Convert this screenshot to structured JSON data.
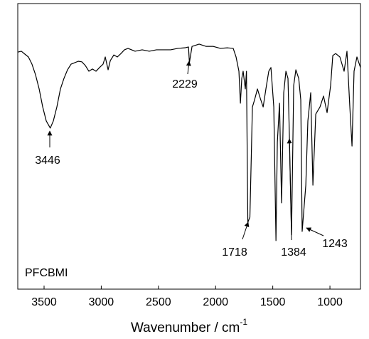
{
  "chart_data": {
    "type": "line",
    "xlabel": "Wavenumber / cm",
    "xlabel_superscript": "-1",
    "sample_label": "PFCBMI",
    "annotations": [
      "3446",
      "2229",
      "1718",
      "1384",
      "1243"
    ],
    "xlim": [
      3730,
      733
    ],
    "ylim": [
      0,
      100
    ],
    "xticks": [
      3500,
      3000,
      2500,
      2000,
      1500,
      1000
    ],
    "color": "#000000",
    "x": [
      3730,
      3699,
      3668,
      3637,
      3606,
      3575,
      3543,
      3512,
      3481,
      3446,
      3419,
      3388,
      3357,
      3326,
      3295,
      3264,
      3232,
      3201,
      3170,
      3139,
      3108,
      3077,
      3046,
      3015,
      2984,
      2965,
      2940,
      2921,
      2890,
      2859,
      2828,
      2797,
      2766,
      2704,
      2642,
      2580,
      2517,
      2455,
      2393,
      2331,
      2269,
      2237,
      2229,
      2206,
      2144,
      2082,
      2020,
      1958,
      1895,
      1846,
      1821,
      1796,
      1783,
      1771,
      1759,
      1740,
      1730,
      1718,
      1700,
      1678,
      1659,
      1634,
      1609,
      1584,
      1560,
      1535,
      1516,
      1491,
      1472,
      1460,
      1441,
      1423,
      1404,
      1385,
      1367,
      1354,
      1336,
      1317,
      1298,
      1273,
      1255,
      1243,
      1211,
      1193,
      1168,
      1149,
      1124,
      1087,
      1056,
      1025,
      994,
      975,
      950,
      913,
      876,
      851,
      826,
      807,
      789,
      764,
      733
    ],
    "values": [
      83.0,
      83.3,
      82.3,
      81.3,
      78.8,
      75.1,
      70.1,
      63.8,
      58.9,
      56.4,
      58.9,
      63.8,
      70.1,
      73.8,
      76.8,
      78.8,
      79.3,
      79.8,
      79.6,
      78.3,
      76.3,
      77.1,
      76.3,
      77.6,
      78.8,
      81.3,
      76.8,
      80.0,
      82.0,
      81.3,
      82.5,
      83.8,
      84.3,
      83.3,
      83.8,
      83.3,
      83.8,
      83.8,
      83.8,
      84.3,
      84.5,
      84.8,
      79.3,
      85.0,
      85.8,
      85.0,
      85.0,
      84.3,
      84.5,
      84.3,
      81.3,
      76.3,
      65.1,
      73.8,
      76.3,
      70.1,
      76.3,
      23.4,
      25.2,
      63.8,
      66.3,
      70.1,
      66.8,
      63.8,
      70.1,
      76.3,
      77.6,
      63.8,
      17.0,
      51.4,
      65.1,
      30.2,
      68.8,
      76.3,
      73.8,
      52.6,
      19.0,
      71.3,
      76.8,
      73.8,
      66.3,
      20.2,
      36.4,
      58.9,
      68.8,
      36.4,
      61.3,
      63.8,
      67.6,
      61.8,
      71.3,
      81.8,
      82.5,
      81.3,
      76.3,
      83.3,
      63.8,
      50.1,
      76.3,
      81.3,
      77.6
    ]
  }
}
